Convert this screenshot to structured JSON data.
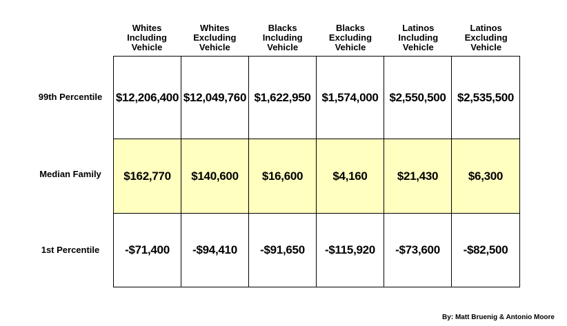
{
  "chart_data": {
    "type": "table",
    "columns": [
      [
        "Whites",
        "Including",
        "Vehicle"
      ],
      [
        "Whites",
        "Excluding",
        "Vehicle"
      ],
      [
        "Blacks",
        "Including",
        "Vehicle"
      ],
      [
        "Blacks",
        "Excluding",
        "Vehicle"
      ],
      [
        "Latinos",
        "Including",
        "Vehicle"
      ],
      [
        "Latinos",
        "Excluding",
        "Vehicle"
      ]
    ],
    "rows": [
      {
        "label": "99th Percentile",
        "values": [
          "$12,206,400",
          "$12,049,760",
          "$1,622,950",
          "$1,574,000",
          "$2,550,500",
          "$2,535,500"
        ]
      },
      {
        "label": "Median Family",
        "values": [
          "$162,770",
          "$140,600",
          "$16,600",
          "$4,160",
          "$21,430",
          "$6,300"
        ]
      },
      {
        "label": "1st Percentile",
        "values": [
          "-$71,400",
          "-$94,410",
          "-$91,650",
          "-$115,920",
          "-$73,600",
          "-$82,500"
        ]
      }
    ],
    "highlight_row_color": "#ffffc0",
    "grid_color": "#000000"
  },
  "credit": "By: Matt Bruenig & Antonio Moore"
}
